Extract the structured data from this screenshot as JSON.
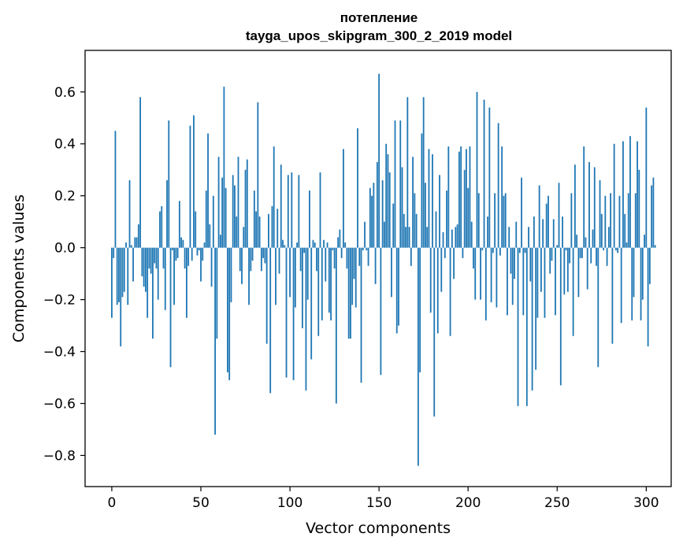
{
  "chart_data": {
    "type": "bar",
    "title": "потепление",
    "subtitle": "tayga_upos_skipgram_300_2_2019 model",
    "xlabel": "Vector components",
    "ylabel": "Components values",
    "xlim": [
      -15,
      314
    ],
    "ylim": [
      -0.92,
      0.76
    ],
    "xticks": [
      0,
      50,
      100,
      150,
      200,
      250,
      300
    ],
    "xtick_labels": [
      "0",
      "50",
      "100",
      "150",
      "200",
      "250",
      "300"
    ],
    "yticks": [
      -0.8,
      -0.6,
      -0.4,
      -0.2,
      0.0,
      0.2,
      0.4,
      0.6
    ],
    "ytick_labels": [
      "−0.8",
      "−0.6",
      "−0.4",
      "−0.2",
      "0.0",
      "0.2",
      "0.4",
      "0.6"
    ],
    "bar_color": "#1f77b4",
    "grid": false,
    "values": [
      -0.27,
      -0.04,
      0.45,
      -0.22,
      -0.21,
      -0.38,
      -0.19,
      -0.17,
      0.02,
      -0.22,
      0.26,
      0.01,
      -0.13,
      0.04,
      0.04,
      0.09,
      0.58,
      -0.11,
      -0.15,
      -0.17,
      -0.27,
      -0.08,
      -0.1,
      -0.35,
      -0.06,
      -0.08,
      -0.2,
      0.14,
      0.16,
      -0.08,
      -0.24,
      0.26,
      0.49,
      -0.46,
      -0.01,
      -0.22,
      -0.05,
      -0.04,
      0.18,
      0.04,
      0.03,
      -0.08,
      -0.27,
      -0.07,
      0.47,
      -0.05,
      0.51,
      0.14,
      -0.03,
      -0.01,
      -0.13,
      -0.05,
      0.02,
      0.22,
      0.44,
      0.09,
      -0.15,
      0.2,
      -0.72,
      -0.35,
      0.35,
      0.05,
      0.27,
      0.62,
      0.23,
      -0.48,
      -0.51,
      -0.21,
      0.28,
      0.24,
      0.12,
      0.35,
      -0.09,
      -0.14,
      0.08,
      0.3,
      0.34,
      -0.22,
      -0.09,
      -0.05,
      0.22,
      0.14,
      0.56,
      0.12,
      -0.09,
      -0.04,
      -0.06,
      -0.37,
      0.13,
      -0.56,
      0.16,
      0.39,
      -0.22,
      0.15,
      -0.1,
      0.32,
      0.03,
      0.01,
      -0.5,
      0.28,
      -0.19,
      0.29,
      -0.51,
      -0.23,
      0.02,
      0.28,
      -0.09,
      -0.31,
      -0.02,
      -0.55,
      -0.2,
      0.22,
      -0.43,
      0.03,
      0.02,
      -0.09,
      -0.34,
      0.29,
      -0.28,
      0.03,
      -0.13,
      0.02,
      -0.25,
      -0.28,
      -0.01,
      -0.08,
      -0.6,
      0.04,
      0.07,
      -0.04,
      0.38,
      0.02,
      -0.08,
      -0.35,
      -0.35,
      -0.22,
      -0.12,
      -0.23,
      0.46,
      -0.07,
      -0.52,
      -0.01,
      0.1,
      -0.01,
      -0.07,
      0.23,
      0.2,
      0.25,
      -0.14,
      0.33,
      0.67,
      -0.49,
      0.26,
      0.1,
      0.4,
      0.36,
      0.29,
      -0.19,
      0.17,
      0.49,
      -0.33,
      -0.3,
      0.49,
      0.31,
      0.13,
      0.08,
      0.58,
      0.08,
      -0.07,
      0.35,
      0.21,
      0.13,
      -0.84,
      -0.48,
      0.44,
      0.58,
      0.25,
      0.08,
      0.38,
      -0.25,
      0.36,
      -0.65,
      0.14,
      -0.33,
      0.28,
      -0.17,
      0.06,
      -0.04,
      0.22,
      0.39,
      -0.34,
      0.07,
      -0.12,
      0.08,
      0.09,
      0.37,
      0.39,
      -0.04,
      0.3,
      0.38,
      0.23,
      0.39,
      0.1,
      -0.08,
      -0.2,
      0.6,
      0.21,
      -0.2,
      -0.01,
      0.57,
      -0.28,
      0.12,
      0.54,
      -0.21,
      -0.02,
      0.21,
      -0.23,
      0.48,
      -0.03,
      0.39,
      0.2,
      0.21,
      -0.26,
      0.08,
      -0.1,
      -0.22,
      -0.12,
      0.1,
      -0.61,
      -0.02,
      0.27,
      -0.26,
      -0.02,
      -0.61,
      0.08,
      -0.13,
      -0.55,
      0.12,
      -0.47,
      -0.27,
      0.24,
      -0.17,
      0.11,
      -0.27,
      0.17,
      0.2,
      -0.1,
      -0.05,
      0.11,
      -0.26,
      0.01,
      0.25,
      -0.53,
      0.12,
      -0.18,
      -0.01,
      -0.17,
      -0.06,
      0.21,
      -0.34,
      0.32,
      0.05,
      -0.19,
      -0.04,
      -0.04,
      0.39,
      0.04,
      -0.16,
      0.33,
      -0.06,
      0.07,
      0.31,
      -0.07,
      -0.46,
      0.26,
      0.13,
      -0.01,
      0.2,
      -0.07,
      0.08,
      0.21,
      -0.37,
      0.4,
      -0.01,
      -0.02,
      0.2,
      -0.29,
      0.41,
      0.13,
      0.02,
      0.21,
      0.43,
      -0.28,
      -0.19,
      0.21,
      0.41,
      0.3,
      -0.28,
      -0.2,
      0.05,
      0.54,
      -0.38,
      -0.14,
      0.24,
      0.27,
      0.01
    ]
  }
}
